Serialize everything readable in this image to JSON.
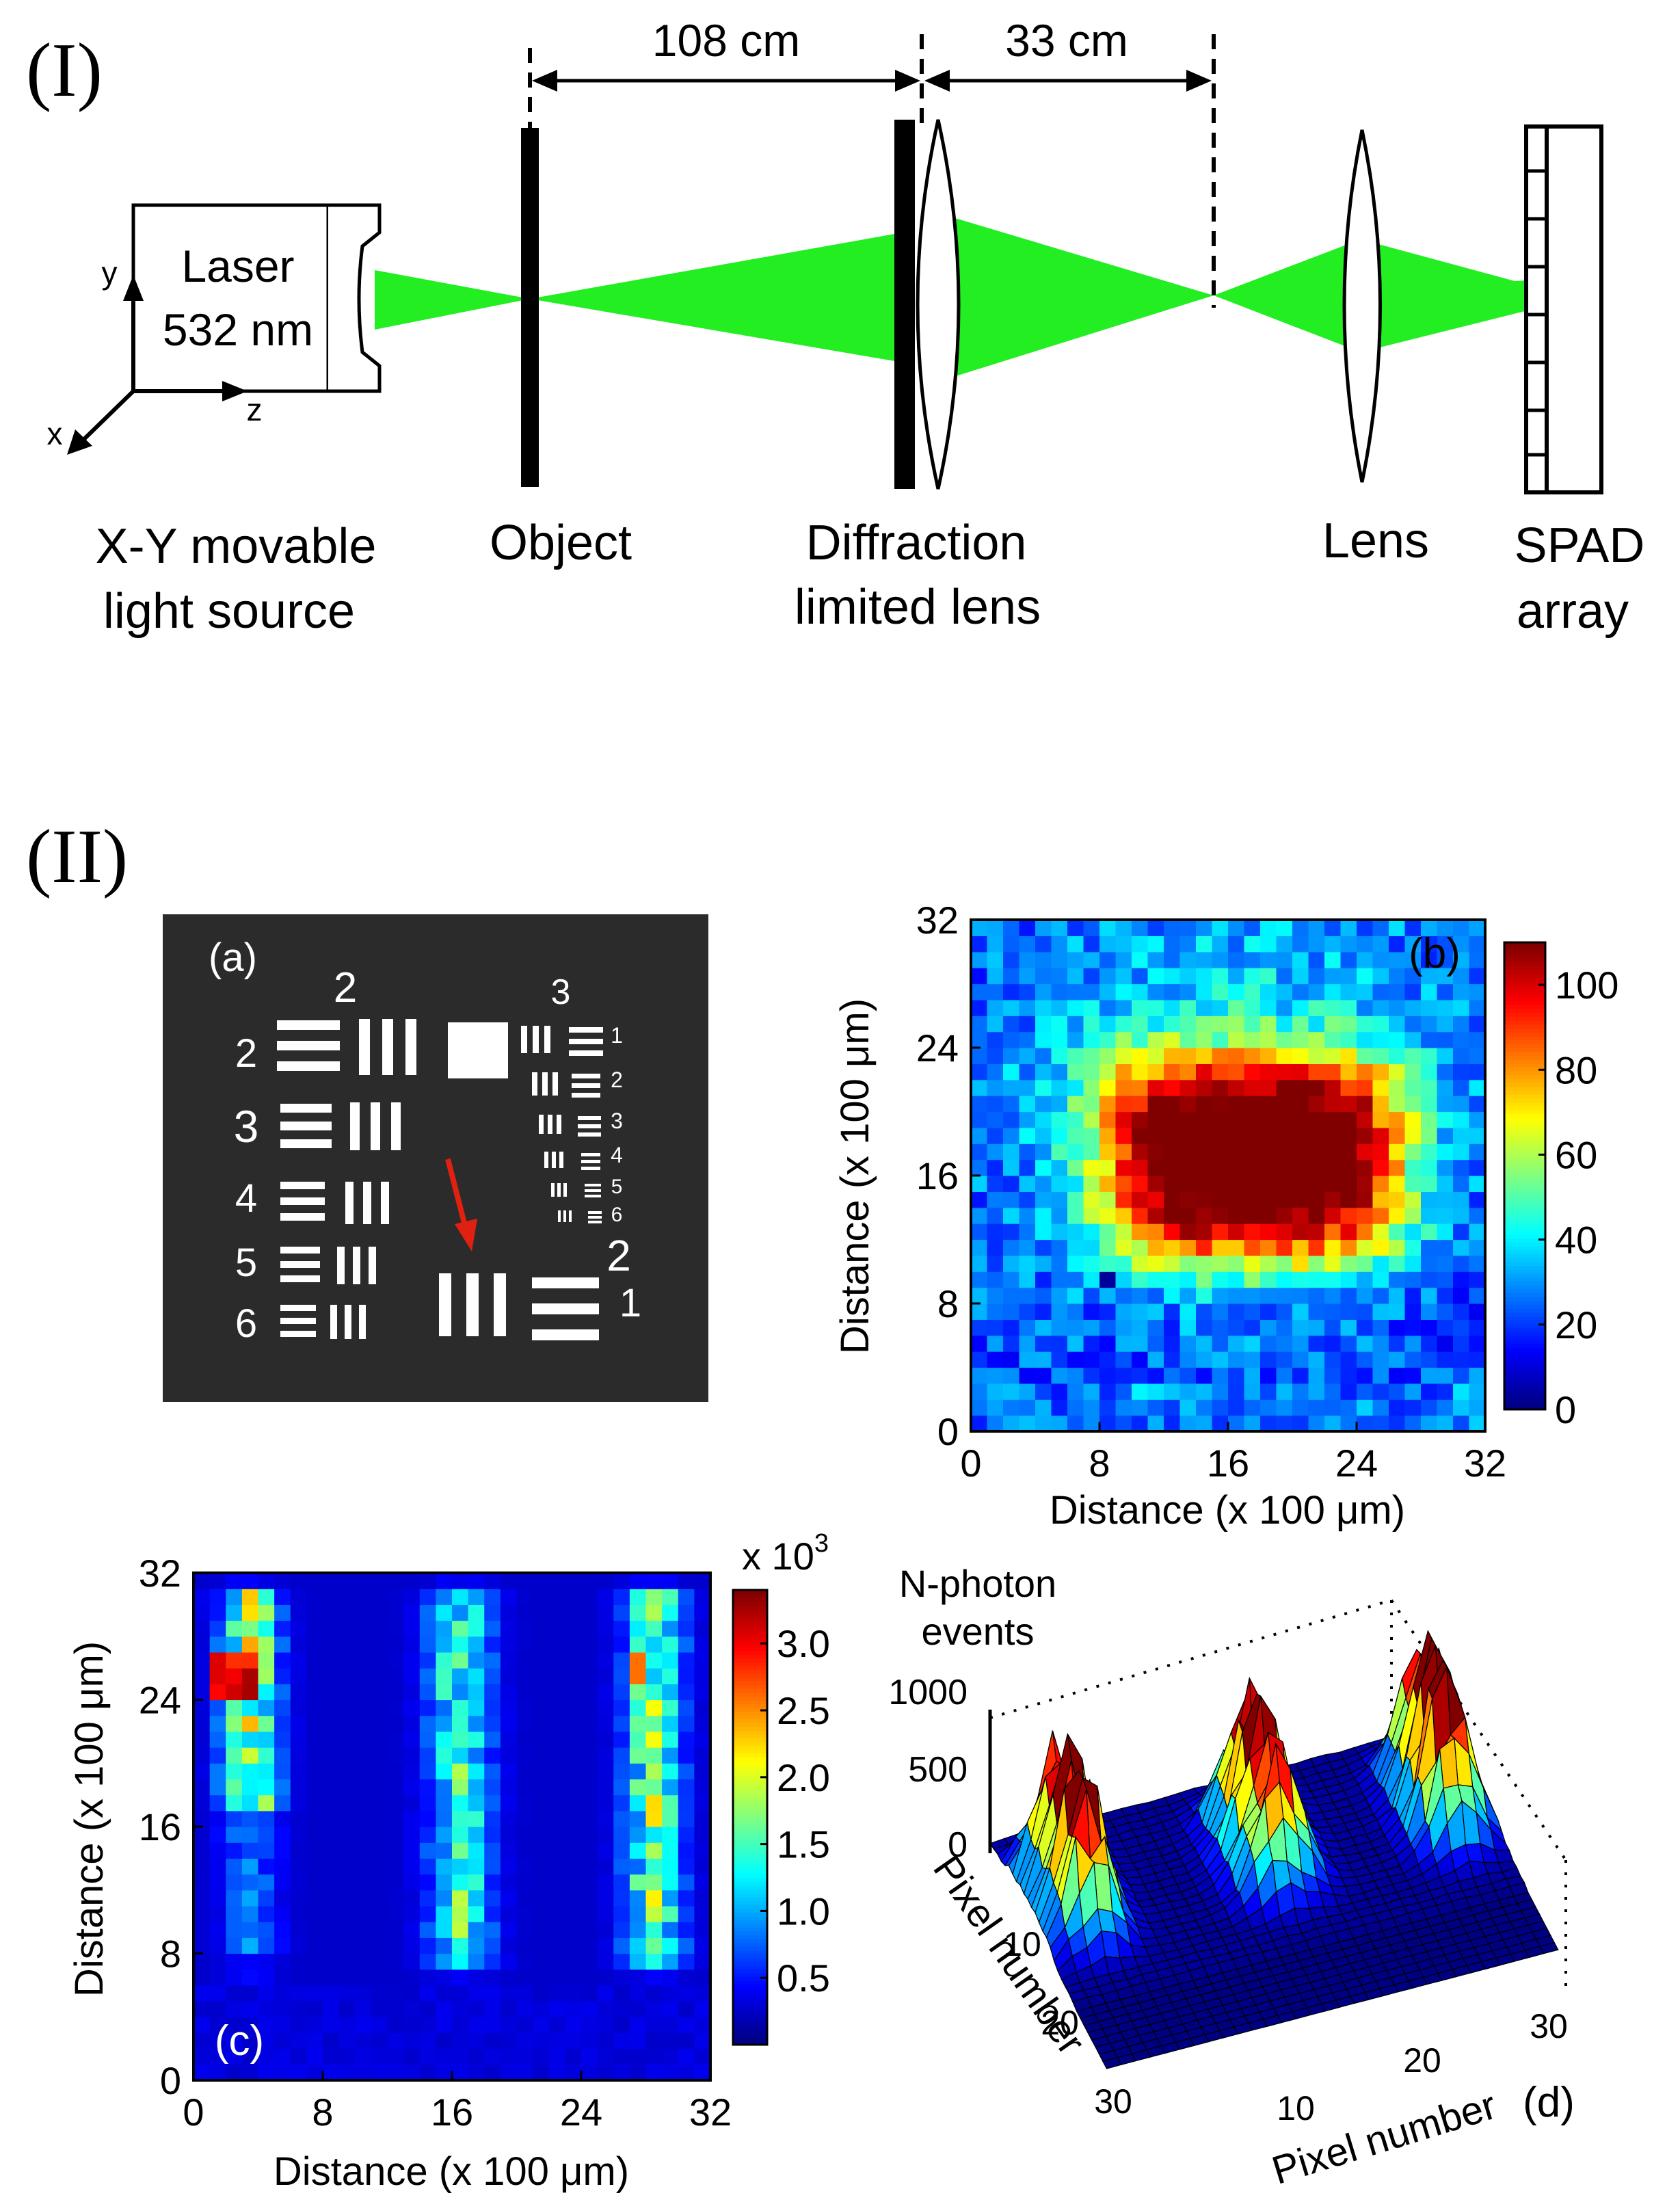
{
  "part1": {
    "label": "(I)",
    "dim_108": "108 cm",
    "dim_33": "33 cm",
    "laser_line1": "Laser",
    "laser_line2": "532 nm",
    "axis_x": "x",
    "axis_y": "y",
    "axis_z": "z",
    "source_line1": "X-Y movable",
    "source_line2": "light source",
    "object_label": "Object",
    "difflens_line1": "Diffraction",
    "difflens_line2": "limited lens",
    "lens_label": "Lens",
    "spad_line1": "SPAD",
    "spad_line2": "array"
  },
  "part2": {
    "label": "(II)",
    "panel_a": {
      "tag": "(a)",
      "group_left": "2",
      "group_right": "3",
      "left_elements": [
        "2",
        "3",
        "4",
        "5",
        "6"
      ],
      "right_elements": [
        "1",
        "2",
        "3",
        "4",
        "5",
        "6"
      ],
      "bottom_group": "2",
      "bottom_element": "1"
    },
    "panel_d": {
      "zlabel_line1": "N-photon",
      "zlabel_line2": "events",
      "ylabel": "Pixel number",
      "xlabel": "Pixel number",
      "tag": "(d)"
    }
  },
  "chart_data": [
    {
      "type": "heatmap",
      "tag": "(b)",
      "xlabel": "Distance (x 100 μm)",
      "ylabel": "Distance (x 100 μm)",
      "xticks": [
        "0",
        "8",
        "16",
        "24",
        "32"
      ],
      "yticks": [
        "0",
        "8",
        "16",
        "24",
        "32"
      ],
      "xlim": [
        0,
        32
      ],
      "ylim": [
        0,
        32
      ],
      "grid_size": [
        32,
        32
      ],
      "colorbar": {
        "min": 0,
        "max": 110,
        "ticks": [
          "0",
          "20",
          "40",
          "60",
          "80",
          "100"
        ]
      },
      "description_values": "broad plateau ~85–100 counts centered at x≈16, y≈16; falls to ~20–40 at edges; single low pixel (~0) near x≈8, y≈10"
    },
    {
      "type": "heatmap",
      "tag": "(c)",
      "xlabel": "Distance (x 100 μm)",
      "ylabel": "Distance (x 100 μm)",
      "xticks": [
        "0",
        "8",
        "16",
        "24",
        "32"
      ],
      "yticks": [
        "0",
        "8",
        "16",
        "24",
        "32"
      ],
      "xlim": [
        0,
        32
      ],
      "ylim": [
        0,
        32
      ],
      "grid_size": [
        32,
        32
      ],
      "colorbar": {
        "label": "x 10",
        "exponent": "3",
        "min": 0,
        "max": 3.4,
        "ticks": [
          "0.5",
          "1.0",
          "1.5",
          "2.0",
          "2.5",
          "3.0"
        ]
      },
      "description_values": "three vertical bright stripes at x≈3, x≈16, x≈28; peak ~3.3e3 near x≈3, y≈25"
    },
    {
      "type": "surface",
      "tag": "(d)",
      "zlabel": "N-photon events",
      "zticks": [
        "0",
        "500",
        "1000"
      ],
      "xticks": [
        "10",
        "20",
        "30"
      ],
      "yticks": [
        "10",
        "20",
        "30"
      ],
      "description_values": "3D surface of the three-bar pattern, peaks up to ~1000 counts"
    }
  ]
}
